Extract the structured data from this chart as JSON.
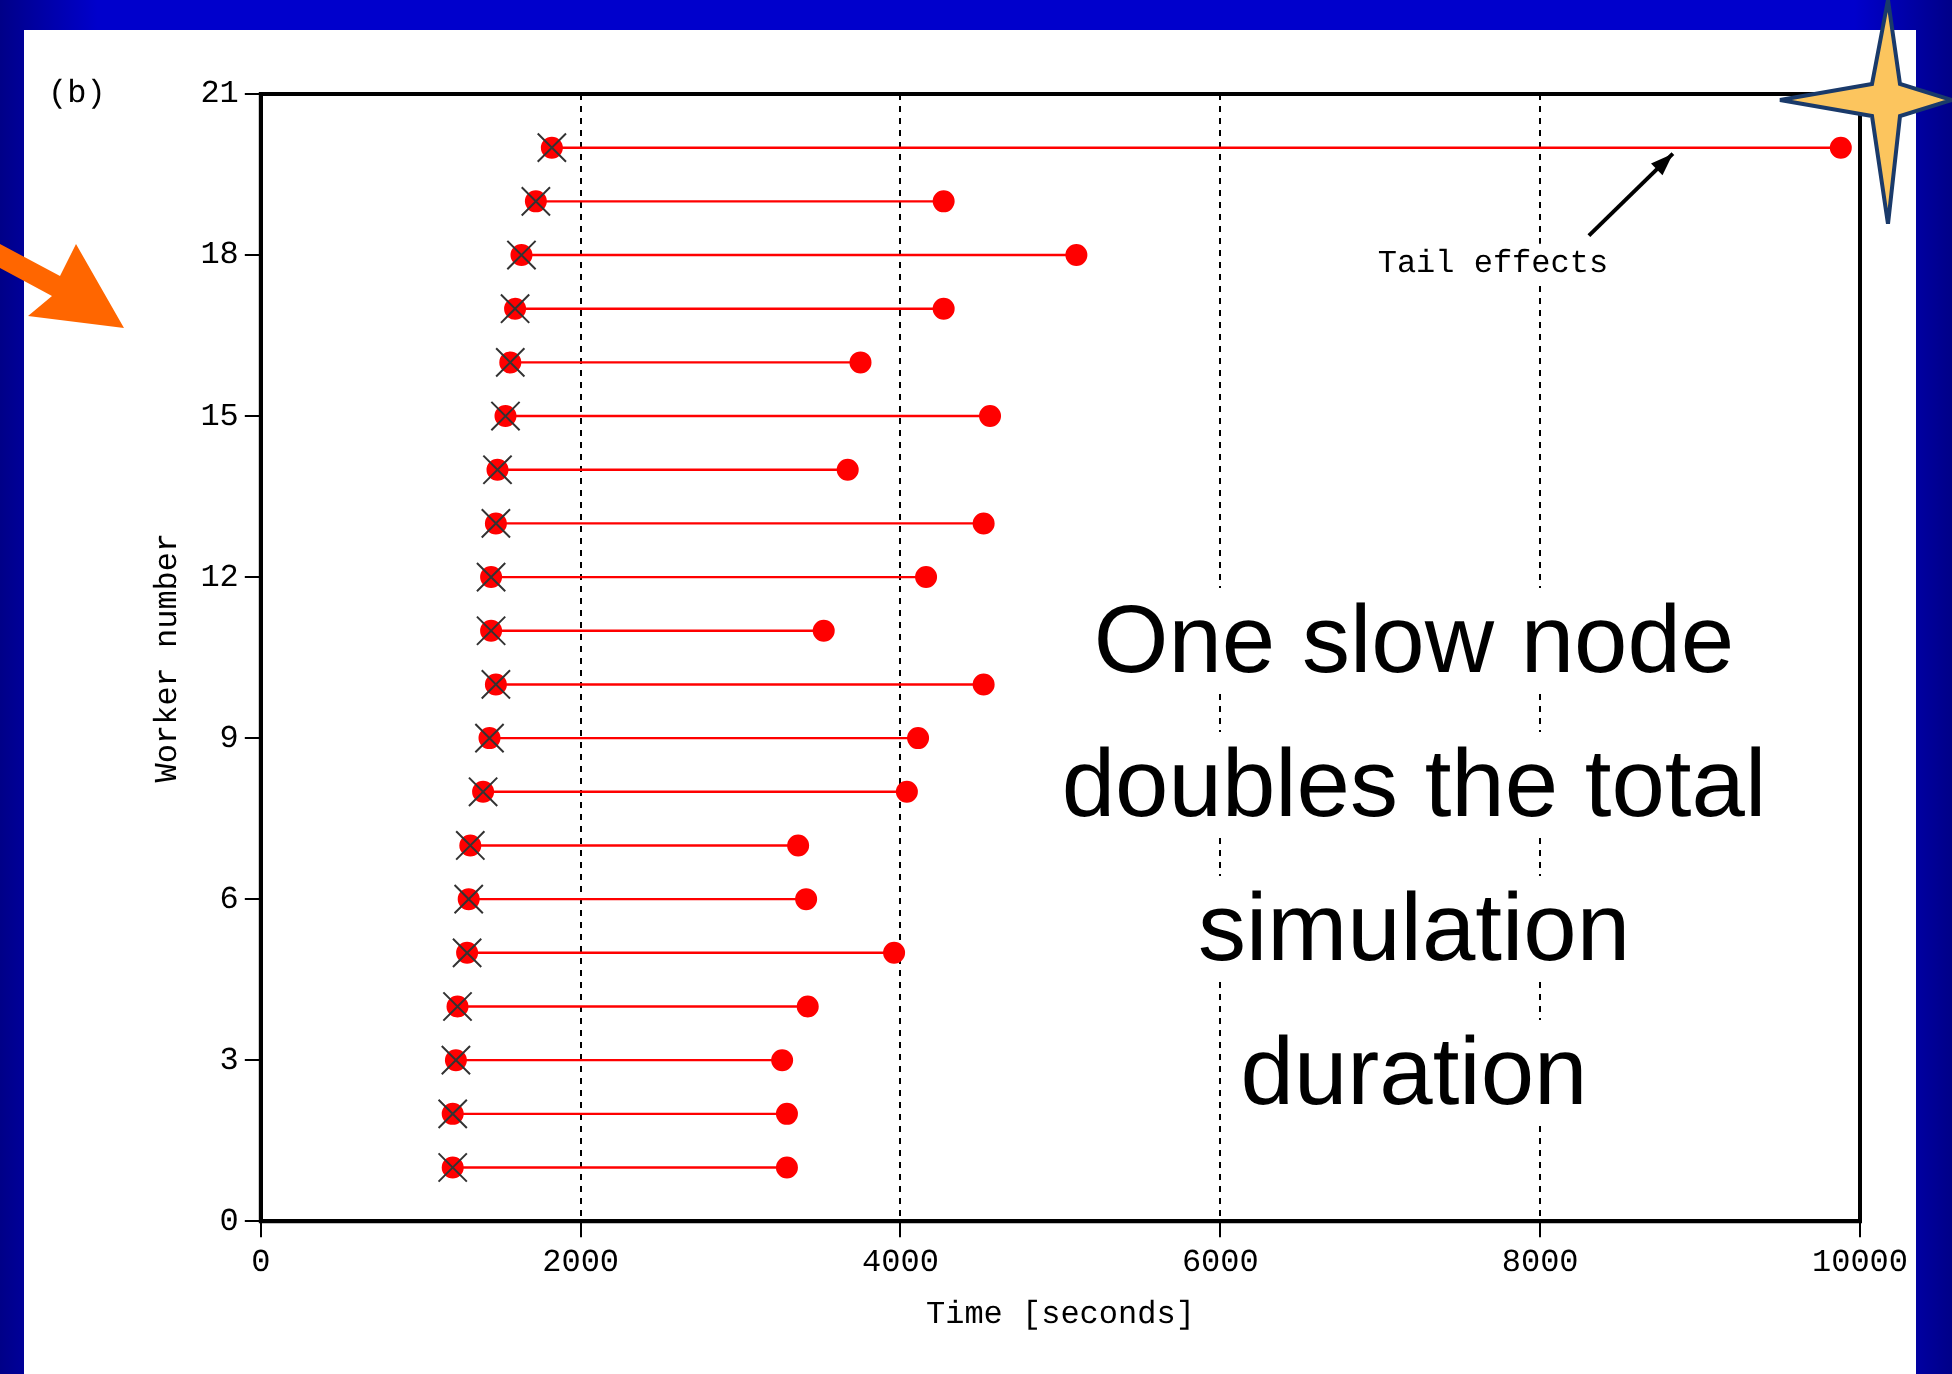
{
  "chart_data": {
    "type": "line",
    "xlabel": "Time [seconds]",
    "ylabel": "Worker number",
    "marker": "circle",
    "line_style": "solid",
    "series": [
      {
        "type": "scatter",
        "marker": "cross",
        "color": "#333333",
        "x": [
          1200,
          1200,
          1220,
          1230,
          1290,
          1300,
          1310,
          1390,
          1430,
          1470,
          1440,
          1440,
          1470,
          1480,
          1530,
          1560,
          1590,
          1630,
          1720,
          1820
        ],
        "values": [
          1,
          2,
          3,
          4,
          5,
          6,
          7,
          8,
          9,
          10,
          11,
          12,
          13,
          14,
          15,
          16,
          17,
          18,
          19,
          20
        ]
      },
      {
        "color": "#ff0000",
        "x": [
          1200,
          3290
        ],
        "values": [
          1,
          1
        ]
      },
      {
        "color": "#ff0000",
        "x": [
          1200,
          3290
        ],
        "values": [
          2,
          2
        ]
      },
      {
        "color": "#ff0000",
        "x": [
          1220,
          3260
        ],
        "values": [
          3,
          3
        ]
      },
      {
        "color": "#ff0000",
        "x": [
          1230,
          3420
        ],
        "values": [
          4,
          4
        ]
      },
      {
        "color": "#ff0000",
        "x": [
          1290,
          3960
        ],
        "values": [
          5,
          5
        ]
      },
      {
        "color": "#ff0000",
        "x": [
          1300,
          3410
        ],
        "values": [
          6,
          6
        ]
      },
      {
        "color": "#ff0000",
        "x": [
          1310,
          3360
        ],
        "values": [
          7,
          7
        ]
      },
      {
        "color": "#ff0000",
        "x": [
          1390,
          4040
        ],
        "values": [
          8,
          8
        ]
      },
      {
        "color": "#ff0000",
        "x": [
          1430,
          4110
        ],
        "values": [
          9,
          9
        ]
      },
      {
        "color": "#ff0000",
        "x": [
          1470,
          4520
        ],
        "values": [
          10,
          10
        ]
      },
      {
        "color": "#ff0000",
        "x": [
          1440,
          3520
        ],
        "values": [
          11,
          11
        ]
      },
      {
        "color": "#ff0000",
        "x": [
          1440,
          4160
        ],
        "values": [
          12,
          12
        ]
      },
      {
        "color": "#ff0000",
        "x": [
          1470,
          4520
        ],
        "values": [
          13,
          13
        ]
      },
      {
        "color": "#ff0000",
        "x": [
          1480,
          3670
        ],
        "values": [
          14,
          14
        ]
      },
      {
        "color": "#ff0000",
        "x": [
          1530,
          4560
        ],
        "values": [
          15,
          15
        ]
      },
      {
        "color": "#ff0000",
        "x": [
          1560,
          3750
        ],
        "values": [
          16,
          16
        ]
      },
      {
        "color": "#ff0000",
        "x": [
          1590,
          4270
        ],
        "values": [
          17,
          17
        ]
      },
      {
        "color": "#ff0000",
        "x": [
          1630,
          5100
        ],
        "values": [
          18,
          18
        ]
      },
      {
        "color": "#ff0000",
        "x": [
          1720,
          4270
        ],
        "values": [
          19,
          19
        ]
      },
      {
        "color": "#ff0000",
        "x": [
          1820,
          9880
        ],
        "values": [
          20,
          20
        ]
      }
    ],
    "xlim": [
      0,
      10000
    ],
    "xticks": [
      0,
      2000,
      4000,
      6000,
      8000,
      10000
    ],
    "ylim": [
      0,
      21
    ],
    "yticks": [
      0,
      3,
      6,
      9,
      12,
      15,
      18,
      21
    ],
    "grid": "x",
    "legend": false,
    "annotations": [
      "(b)",
      {
        "text": "Tail effects",
        "x": 8830,
        "y": 20
      },
      "One slow node doubles the total simulation duration"
    ]
  }
}
